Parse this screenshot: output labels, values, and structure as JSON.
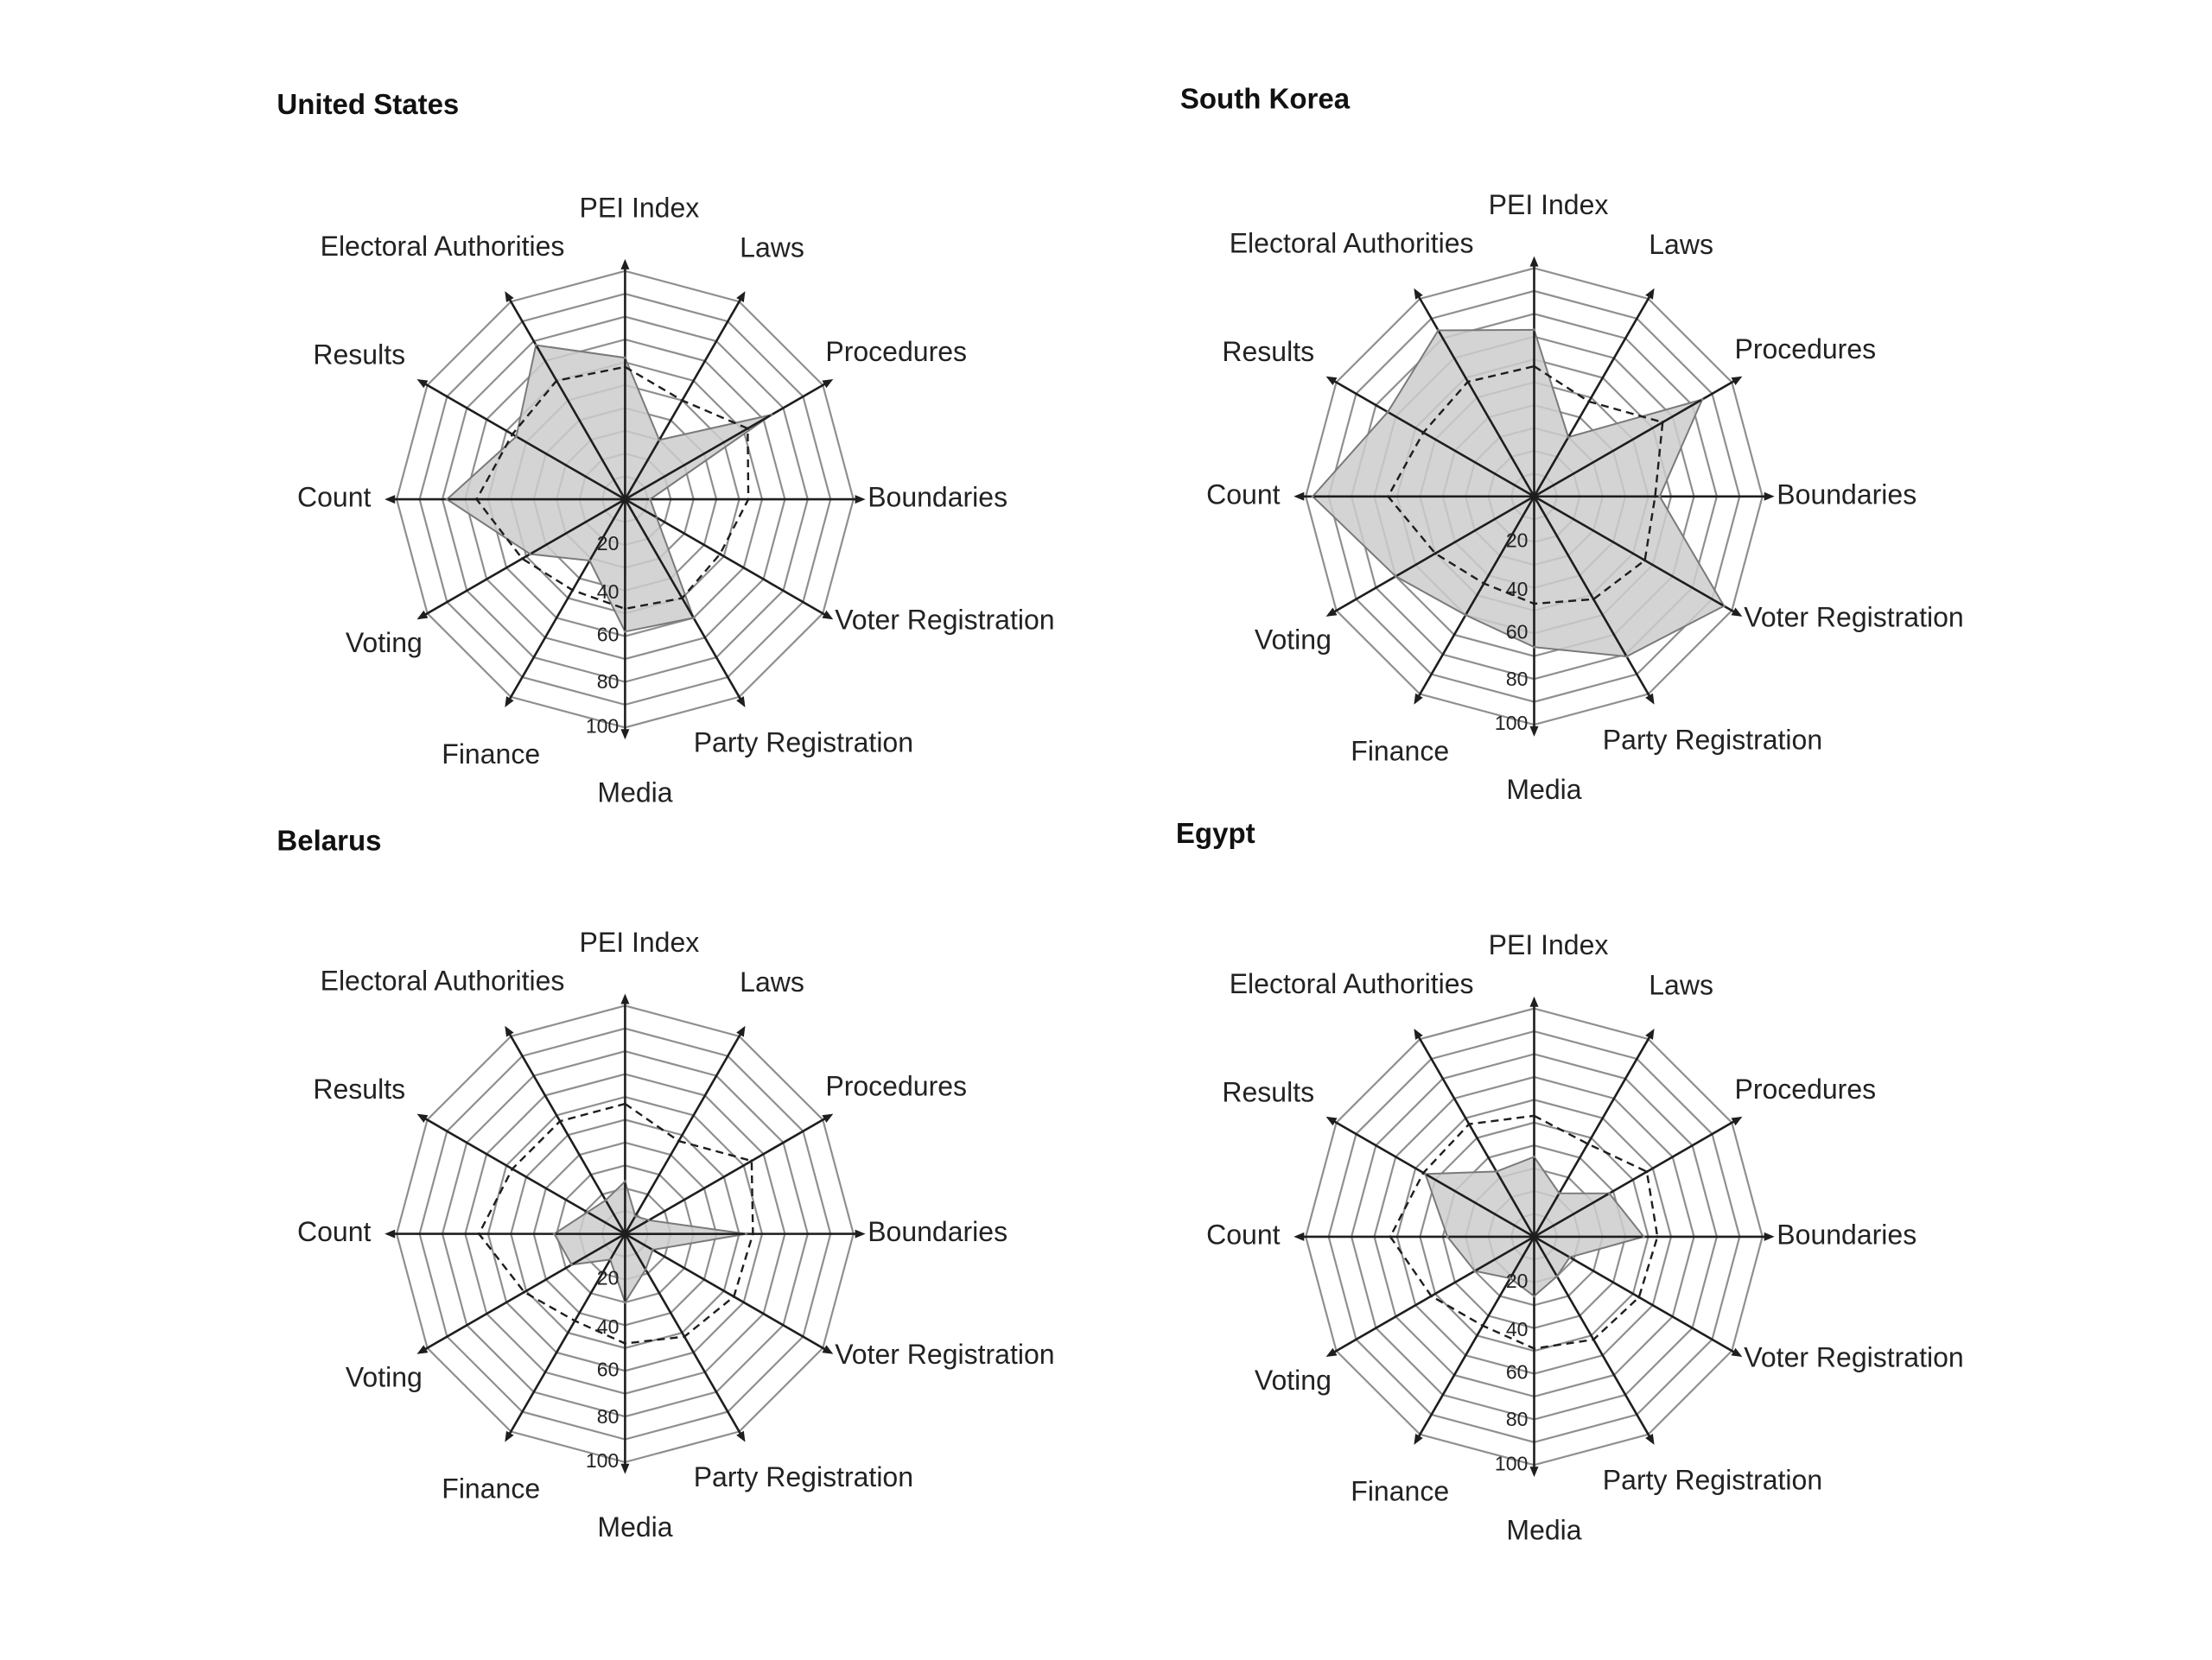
{
  "chart_data": [
    {
      "type": "radar",
      "title": "United States",
      "axes": [
        "PEI Index",
        "Laws",
        "Procedures",
        "Boundaries",
        "Voter Registration",
        "Party Registration",
        "Media",
        "Finance",
        "Voting",
        "Count",
        "Results",
        "Electoral Authorities"
      ],
      "ticks": [
        "20",
        "40",
        "60",
        "80",
        "100"
      ],
      "rlim": [
        0,
        100
      ],
      "series": [
        {
          "values": [
            62,
            30,
            74,
            11,
            16,
            60,
            58,
            31,
            48,
            78,
            55,
            78
          ],
          "style": "filled"
        },
        {
          "values": [
            58,
            50,
            62,
            54,
            48,
            50,
            48,
            46,
            52,
            65,
            57,
            60
          ],
          "style": "dashed"
        }
      ]
    },
    {
      "type": "radar",
      "title": "South Korea",
      "axes": [
        "PEI Index",
        "Laws",
        "Procedures",
        "Boundaries",
        "Voter Registration",
        "Party Registration",
        "Media",
        "Finance",
        "Voting",
        "Count",
        "Results",
        "Electoral Authorities"
      ],
      "ticks": [
        "20",
        "40",
        "60",
        "80",
        "100"
      ],
      "rlim": [
        0,
        100
      ],
      "series": [
        {
          "values": [
            73,
            30,
            85,
            55,
            96,
            81,
            66,
            60,
            70,
            97,
            74,
            84
          ],
          "style": "filled"
        },
        {
          "values": [
            57,
            48,
            65,
            53,
            56,
            52,
            47,
            44,
            50,
            64,
            56,
            58
          ],
          "style": "dashed"
        }
      ]
    },
    {
      "type": "radar",
      "title": "Belarus",
      "axes": [
        "PEI Index",
        "Laws",
        "Procedures",
        "Boundaries",
        "Voter Registration",
        "Party Registration",
        "Media",
        "Finance",
        "Voting",
        "Count",
        "Results",
        "Electoral Authorities"
      ],
      "ticks": [
        "20",
        "40",
        "60",
        "80",
        "100"
      ],
      "rlim": [
        0,
        100
      ],
      "series": [
        {
          "values": [
            23,
            9,
            12,
            53,
            14,
            18,
            30,
            13,
            27,
            31,
            19,
            17
          ],
          "style": "filled"
        },
        {
          "values": [
            57,
            47,
            64,
            56,
            55,
            52,
            48,
            44,
            51,
            64,
            57,
            57
          ],
          "style": "dashed"
        }
      ]
    },
    {
      "type": "radar",
      "title": "Egypt",
      "axes": [
        "PEI Index",
        "Laws",
        "Procedures",
        "Boundaries",
        "Voter Registration",
        "Party Registration",
        "Media",
        "Finance",
        "Voting",
        "Count",
        "Results",
        "Electoral Authorities"
      ],
      "ticks": [
        "20",
        "40",
        "60",
        "80",
        "100"
      ],
      "rlim": [
        0,
        100
      ],
      "series": [
        {
          "values": [
            35,
            22,
            38,
            48,
            18,
            20,
            26,
            21,
            30,
            38,
            55,
            33
          ],
          "style": "filled"
        },
        {
          "values": [
            53,
            47,
            57,
            54,
            53,
            52,
            49,
            45,
            52,
            63,
            56,
            57
          ],
          "style": "dashed"
        }
      ]
    }
  ],
  "colors": {
    "country_fill": "#cccccc",
    "country_stroke": "#7a7a7a",
    "average_line": "#1e1e1e",
    "grid_ring": "#8f8f8f",
    "spoke": "#1e1e1e"
  }
}
